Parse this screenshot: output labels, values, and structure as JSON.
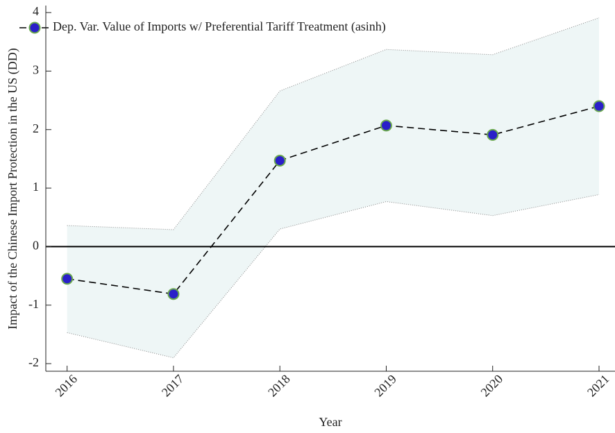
{
  "chart_data": {
    "type": "line",
    "x_label": "Year",
    "y_label": "Impact of the Chinese Import Protection in the US (DD)",
    "x": [
      2016,
      2017,
      2018,
      2019,
      2020,
      2021
    ],
    "series": [
      {
        "name": "Dep. Var. Value of Imports w/ Preferential Tariff Treatment (asinh)",
        "color": "#2a1fc9",
        "edge_color": "#6aa84f",
        "line_color": "#000000",
        "values": [
          -0.55,
          -0.81,
          1.47,
          2.07,
          1.91,
          2.4
        ],
        "ci_lower": [
          -1.47,
          -1.9,
          0.3,
          0.77,
          0.53,
          0.89
        ],
        "ci_upper": [
          0.36,
          0.29,
          2.66,
          3.37,
          3.28,
          3.91
        ],
        "ci_color": "#eef6f6"
      }
    ],
    "xlim": [
      2015.8,
      2021.15
    ],
    "xticks": [
      2016,
      2017,
      2018,
      2019,
      2020,
      2021
    ],
    "ylim": [
      -2.13,
      4.12
    ],
    "yticks": [
      -2,
      -1,
      0,
      1,
      2,
      3,
      4
    ],
    "reference_line": 0,
    "legend": "upper-left",
    "grid": false
  }
}
